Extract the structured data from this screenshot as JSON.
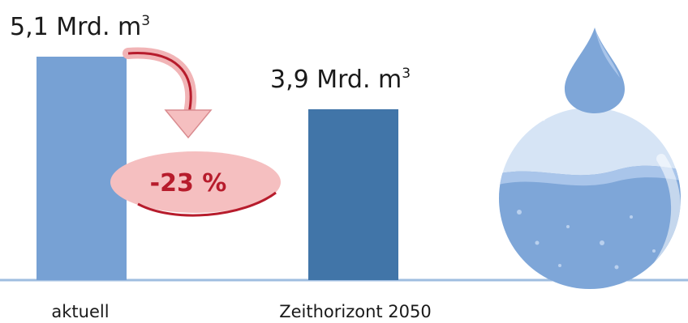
{
  "chart_data": {
    "type": "bar",
    "categories": [
      "aktuell",
      "Zeithorizont 2050"
    ],
    "values": [
      5.1,
      3.9
    ],
    "value_labels": [
      "5,1 Mrd. m",
      "3,9 Mrd. m"
    ],
    "value_unit_superscript": "3",
    "ylim": [
      0,
      5.1
    ],
    "colors": [
      "#77a1d4",
      "#4175a8"
    ],
    "axis_color": "#9fbde0",
    "annotation": {
      "text": "-23 %",
      "from": "aktuell",
      "arrow_color": "#b71c2c",
      "fill": "#f5bfc0"
    },
    "grid": false,
    "legend": "none",
    "illustration": "water-drop-over-filled-round-flask"
  }
}
